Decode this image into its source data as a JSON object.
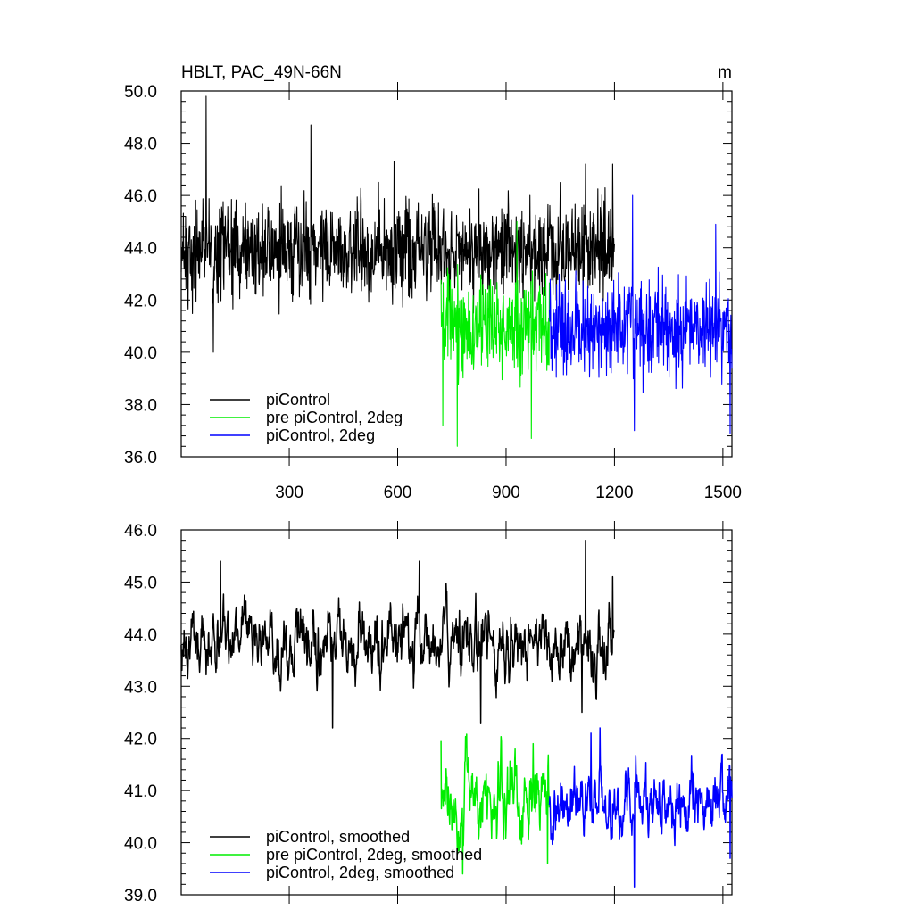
{
  "figure": {
    "title": "HBLT, PAC_49N-66N",
    "units": "m"
  },
  "chart_data": [
    {
      "type": "line",
      "title": "HBLT, PAC_49N-66N",
      "ylabel_right": "m",
      "xlim": [
        1,
        1525
      ],
      "ylim": [
        36.0,
        50.0
      ],
      "xticks": [
        300,
        600,
        900,
        1200,
        1500
      ],
      "xtick_labels": [
        "300",
        "600",
        "900",
        "1200",
        "1500"
      ],
      "yticks": [
        36.0,
        38.0,
        40.0,
        42.0,
        44.0,
        46.0,
        48.0,
        50.0
      ],
      "ytick_labels": [
        "36.0",
        "38.0",
        "40.0",
        "42.0",
        "44.0",
        "46.0",
        "48.0",
        "50.0"
      ],
      "grid": false,
      "legend": "bottom-left",
      "series": [
        {
          "name": "piControl",
          "color": "#000000",
          "x_start": 1,
          "x_end": 1200,
          "mean": 43.9,
          "spread": 1.3,
          "peaks": [
            [
              70,
              49.8
            ],
            [
              360,
              48.7
            ],
            [
              590,
              47.3
            ],
            [
              1120,
              47.2
            ],
            [
              1195,
              47.2
            ]
          ],
          "lows": [
            [
              90,
              40.0
            ]
          ]
        },
        {
          "name": "pre piControl, 2deg",
          "color": "#00ee00",
          "x_start": 720,
          "x_end": 1020,
          "mean": 41.0,
          "spread": 1.3,
          "peaks": [
            [
              930,
              45.0
            ]
          ],
          "lows": [
            [
              765,
              36.4
            ],
            [
              970,
              36.7
            ],
            [
              725,
              37.2
            ]
          ]
        },
        {
          "name": "piControl, 2deg",
          "color": "#0000ff",
          "x_start": 1020,
          "x_end": 1525,
          "mean": 40.9,
          "spread": 1.3,
          "peaks": [
            [
              1250,
              46.0
            ],
            [
              1480,
              44.9
            ]
          ],
          "lows": [
            [
              1520,
              36.9
            ],
            [
              1255,
              37.0
            ]
          ]
        }
      ]
    },
    {
      "type": "line",
      "xlim": [
        1,
        1525
      ],
      "ylim": [
        39.0,
        46.0
      ],
      "xticks": [
        300,
        600,
        900,
        1200,
        1500
      ],
      "xtick_labels": [],
      "yticks": [
        39.0,
        40.0,
        41.0,
        42.0,
        43.0,
        44.0,
        45.0,
        46.0
      ],
      "ytick_labels": [
        "39.0",
        "40.0",
        "41.0",
        "42.0",
        "43.0",
        "44.0",
        "45.0",
        "46.0"
      ],
      "grid": false,
      "legend": "bottom-left",
      "series": [
        {
          "name": "piControl, smoothed",
          "color": "#000000",
          "x_start": 1,
          "x_end": 1200,
          "mean": 43.8,
          "spread": 0.45,
          "peaks": [
            [
              1120,
              45.8
            ],
            [
              660,
              45.4
            ],
            [
              110,
              45.4
            ],
            [
              1195,
              45.1
            ]
          ],
          "lows": [
            [
              420,
              42.2
            ],
            [
              1110,
              42.5
            ],
            [
              830,
              42.3
            ]
          ]
        },
        {
          "name": "pre piControl, 2deg, smoothed",
          "color": "#00ee00",
          "x_start": 720,
          "x_end": 1020,
          "mean": 40.8,
          "spread": 0.5,
          "peaks": [
            [
              720,
              41.95
            ],
            [
              975,
              41.9
            ]
          ],
          "lows": [
            [
              780,
              39.4
            ],
            [
              1015,
              39.6
            ]
          ]
        },
        {
          "name": "piControl, 2deg, smoothed",
          "color": "#0000ff",
          "x_start": 1020,
          "x_end": 1525,
          "mean": 40.8,
          "spread": 0.45,
          "peaks": [
            [
              1160,
              42.2
            ],
            [
              1135,
              42.1
            ]
          ],
          "lows": [
            [
              1255,
              39.15
            ],
            [
              1520,
              39.7
            ]
          ]
        }
      ]
    }
  ]
}
